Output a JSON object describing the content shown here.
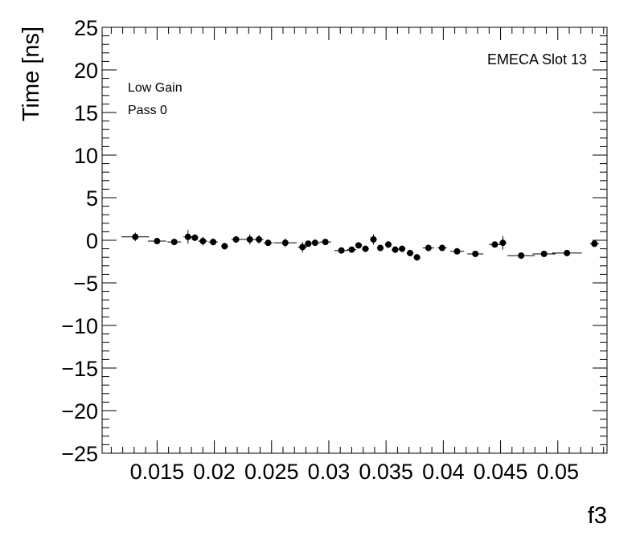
{
  "chart_data": {
    "type": "scatter",
    "title": "",
    "xlabel": "f3",
    "ylabel": "Time [ns]",
    "xlim": [
      0.0102,
      0.0543
    ],
    "ylim": [
      -25,
      25
    ],
    "x_ticks": [
      {
        "value": 0.015,
        "label": "0.015"
      },
      {
        "value": 0.02,
        "label": "0.02"
      },
      {
        "value": 0.025,
        "label": "0.025"
      },
      {
        "value": 0.03,
        "label": "0.03"
      },
      {
        "value": 0.035,
        "label": "0.035"
      },
      {
        "value": 0.04,
        "label": "0.04"
      },
      {
        "value": 0.045,
        "label": "0.045"
      },
      {
        "value": 0.05,
        "label": "0.05"
      }
    ],
    "y_ticks": [
      {
        "value": 25,
        "label": "25"
      },
      {
        "value": 20,
        "label": "20"
      },
      {
        "value": 15,
        "label": "15"
      },
      {
        "value": 10,
        "label": "10"
      },
      {
        "value": 5,
        "label": "5"
      },
      {
        "value": 0,
        "label": "0"
      },
      {
        "value": -5,
        "label": "−5"
      },
      {
        "value": -10,
        "label": "−10"
      },
      {
        "value": -15,
        "label": "−15"
      },
      {
        "value": -20,
        "label": "−20"
      },
      {
        "value": -25,
        "label": "−25"
      }
    ],
    "annotations": {
      "top_right": "EMECA Slot 13",
      "top_left_line1": "Low Gain",
      "top_left_line2": "Pass 0"
    },
    "grid": false,
    "marker_color": "#000000",
    "points": [
      {
        "x": 0.0131,
        "y": 0.4,
        "xerr": 0.0012,
        "yerr": 0.5
      },
      {
        "x": 0.015,
        "y": -0.1,
        "xerr": 0.0008,
        "yerr": 0.3
      },
      {
        "x": 0.0165,
        "y": -0.2,
        "xerr": 0.0006,
        "yerr": 0.3
      },
      {
        "x": 0.0177,
        "y": 0.4,
        "xerr": 0.0004,
        "yerr": 0.8
      },
      {
        "x": 0.0183,
        "y": 0.3,
        "xerr": 0.0003,
        "yerr": 0.4
      },
      {
        "x": 0.019,
        "y": -0.1,
        "xerr": 0.0004,
        "yerr": 0.5
      },
      {
        "x": 0.0199,
        "y": -0.2,
        "xerr": 0.0004,
        "yerr": 0.4
      },
      {
        "x": 0.0209,
        "y": -0.7,
        "xerr": 0.0003,
        "yerr": 0.4
      },
      {
        "x": 0.0219,
        "y": 0.1,
        "xerr": 0.0004,
        "yerr": 0.4
      },
      {
        "x": 0.0231,
        "y": 0.1,
        "xerr": 0.0008,
        "yerr": 0.6
      },
      {
        "x": 0.0239,
        "y": 0.1,
        "xerr": 0.0004,
        "yerr": 0.5
      },
      {
        "x": 0.0247,
        "y": -0.3,
        "xerr": 0.0004,
        "yerr": 0.3
      },
      {
        "x": 0.0262,
        "y": -0.3,
        "xerr": 0.001,
        "yerr": 0.5
      },
      {
        "x": 0.0277,
        "y": -0.8,
        "xerr": 0.0004,
        "yerr": 0.6
      },
      {
        "x": 0.0282,
        "y": -0.4,
        "xerr": 0.0003,
        "yerr": 0.3
      },
      {
        "x": 0.0288,
        "y": -0.3,
        "xerr": 0.0004,
        "yerr": 0.3
      },
      {
        "x": 0.0297,
        "y": -0.2,
        "xerr": 0.0005,
        "yerr": 0.3
      },
      {
        "x": 0.0311,
        "y": -1.2,
        "xerr": 0.0006,
        "yerr": 0.3
      },
      {
        "x": 0.032,
        "y": -1.1,
        "xerr": 0.0004,
        "yerr": 0.3
      },
      {
        "x": 0.0326,
        "y": -0.6,
        "xerr": 0.0003,
        "yerr": 0.3
      },
      {
        "x": 0.0332,
        "y": -1.0,
        "xerr": 0.0003,
        "yerr": 0.3
      },
      {
        "x": 0.0339,
        "y": 0.1,
        "xerr": 0.0003,
        "yerr": 0.6
      },
      {
        "x": 0.0345,
        "y": -0.9,
        "xerr": 0.0003,
        "yerr": 0.3
      },
      {
        "x": 0.0352,
        "y": -0.5,
        "xerr": 0.0003,
        "yerr": 0.4
      },
      {
        "x": 0.0358,
        "y": -1.1,
        "xerr": 0.0003,
        "yerr": 0.4
      },
      {
        "x": 0.0364,
        "y": -1.0,
        "xerr": 0.0003,
        "yerr": 0.3
      },
      {
        "x": 0.0371,
        "y": -1.5,
        "xerr": 0.0003,
        "yerr": 0.3
      },
      {
        "x": 0.0377,
        "y": -2.0,
        "xerr": 0.0003,
        "yerr": 0.4
      },
      {
        "x": 0.0387,
        "y": -0.9,
        "xerr": 0.0005,
        "yerr": 0.3
      },
      {
        "x": 0.0399,
        "y": -0.9,
        "xerr": 0.0004,
        "yerr": 0.3
      },
      {
        "x": 0.0412,
        "y": -1.3,
        "xerr": 0.0006,
        "yerr": 0.3
      },
      {
        "x": 0.0428,
        "y": -1.6,
        "xerr": 0.0007,
        "yerr": 0.3
      },
      {
        "x": 0.0445,
        "y": -0.5,
        "xerr": 0.0005,
        "yerr": 0.3
      },
      {
        "x": 0.0452,
        "y": -0.3,
        "xerr": 0.0003,
        "yerr": 0.8
      },
      {
        "x": 0.0468,
        "y": -1.8,
        "xerr": 0.0012,
        "yerr": 0.3
      },
      {
        "x": 0.0488,
        "y": -1.6,
        "xerr": 0.001,
        "yerr": 0.3
      },
      {
        "x": 0.0508,
        "y": -1.5,
        "xerr": 0.0013,
        "yerr": 0.3
      },
      {
        "x": 0.0532,
        "y": -0.4,
        "xerr": 0.0004,
        "yerr": 0.4
      }
    ]
  }
}
